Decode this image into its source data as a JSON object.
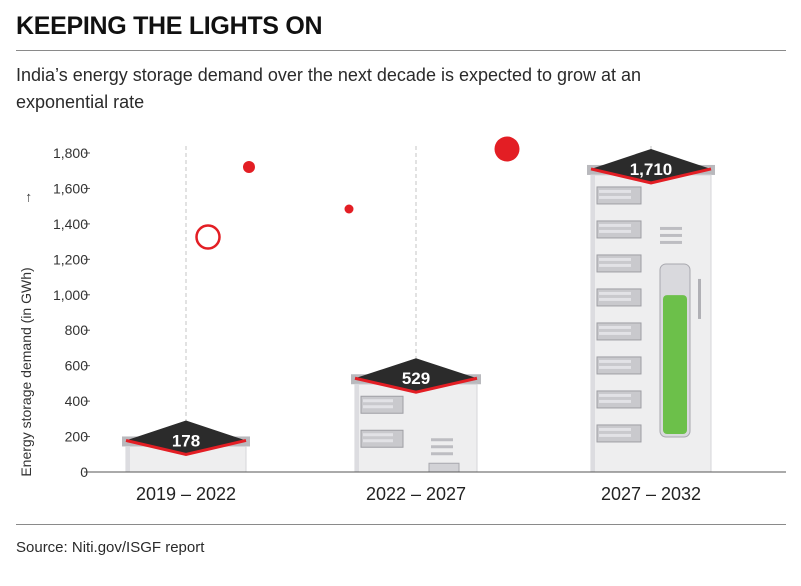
{
  "header": {
    "title": "KEEPING THE LIGHTS ON",
    "subtitle": "India’s energy storage demand over the next decade is expected to grow at an exponential rate"
  },
  "footer": {
    "source": "Source: Niti.gov/ISGF report"
  },
  "colors": {
    "accent": "#e31e24",
    "building": "#eeeeef",
    "roof": "#2b2b2b",
    "battery_fill": "#6cc04a"
  },
  "chart_data": {
    "type": "bar",
    "title": "",
    "xlabel": "",
    "ylabel": "Energy storage demand (in GWh)",
    "ylabel_arrow": "→",
    "categories": [
      "2019 – 2022",
      "2022 – 2027",
      "2027 – 2032"
    ],
    "values": [
      178,
      529,
      1710
    ],
    "value_labels": [
      "178",
      "529",
      "1,710"
    ],
    "ylim": [
      0,
      1800
    ],
    "yticks": [
      0,
      200,
      400,
      600,
      800,
      1000,
      1200,
      1400,
      1600,
      1800
    ],
    "ytick_labels": [
      "0",
      "200",
      "400",
      "600",
      "800",
      "1,000",
      "1,200",
      "1,400",
      "1,600",
      "1,800"
    ],
    "grid": "vertical dashed",
    "legend": "none"
  }
}
